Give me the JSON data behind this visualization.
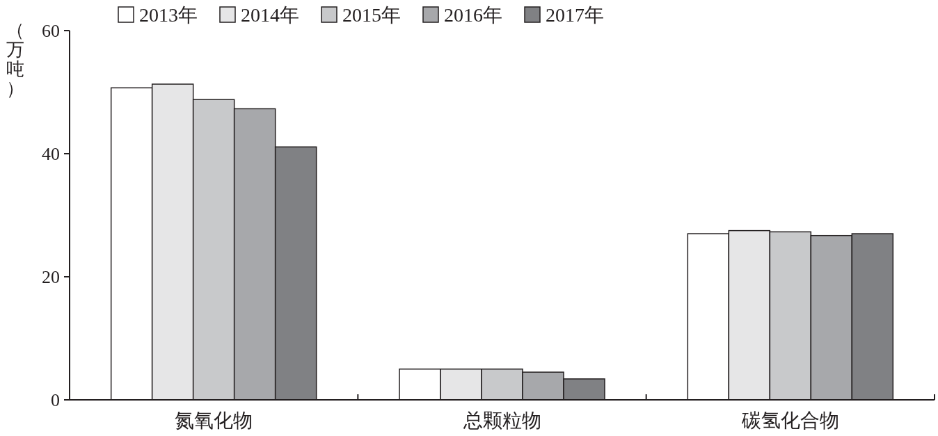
{
  "chart_data": {
    "type": "bar",
    "ylabel": "（万吨）",
    "categories": [
      "氮氧化物",
      "总颗粒物",
      "碳氢化合物"
    ],
    "series": [
      {
        "name": "2013年",
        "color": "#ffffff",
        "values": [
          50.7,
          5.0,
          27.0
        ]
      },
      {
        "name": "2014年",
        "color": "#e6e6e7",
        "values": [
          51.3,
          5.0,
          27.5
        ]
      },
      {
        "name": "2015年",
        "color": "#c8c9cb",
        "values": [
          48.8,
          5.0,
          27.3
        ]
      },
      {
        "name": "2016年",
        "color": "#a7a8ab",
        "values": [
          47.3,
          4.5,
          26.7
        ]
      },
      {
        "name": "2017年",
        "color": "#808184",
        "values": [
          41.1,
          3.4,
          27.0
        ]
      }
    ],
    "ylim": [
      0,
      60
    ],
    "yticks": [
      0,
      20,
      40,
      60
    ],
    "grid": false,
    "legend": "top"
  }
}
